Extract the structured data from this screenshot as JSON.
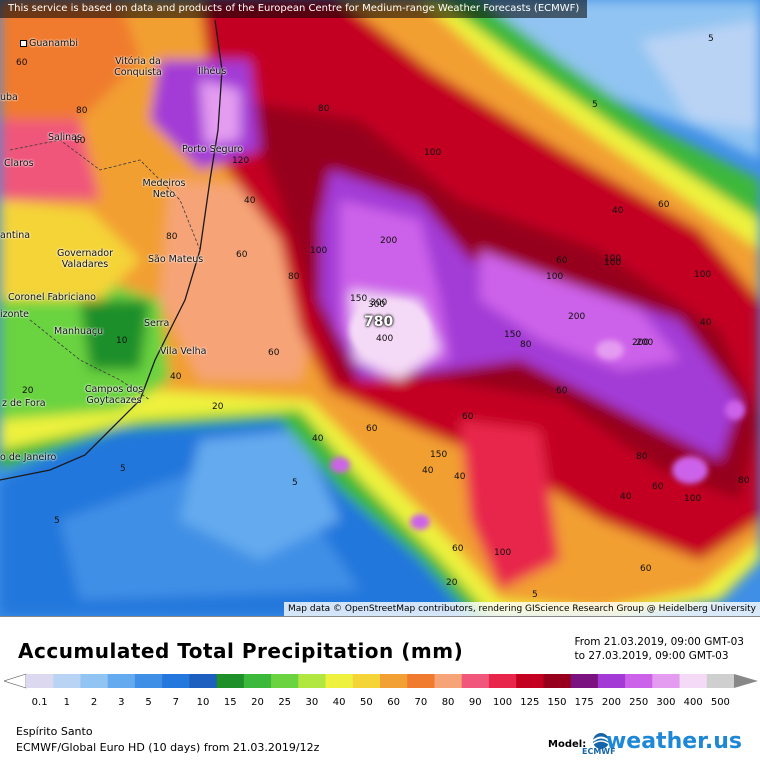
{
  "disclaimer": "This service is based on data and products of the European Centre for Medium-range Weather Forecasts (ECMWF)",
  "attribution": "Map data © OpenStreetMap contributors, rendering GIScience Research Group @ Heidelberg University",
  "title": "Accumulated Total Precipitation (mm)",
  "period": {
    "from": "From 21.03.2019, 09:00 GMT-03",
    "to": "to 27.03.2019, 09:00 GMT-03"
  },
  "scale": {
    "values": [
      "0.1",
      "1",
      "2",
      "3",
      "5",
      "7",
      "10",
      "15",
      "20",
      "25",
      "30",
      "40",
      "50",
      "60",
      "70",
      "80",
      "90",
      "100",
      "125",
      "150",
      "175",
      "200",
      "250",
      "300",
      "400",
      "500"
    ],
    "colors": [
      "#dcd8f0",
      "#b9d3f5",
      "#91c4f2",
      "#64aaee",
      "#3f8fe6",
      "#2477dc",
      "#1d5fbf",
      "#1f8f2a",
      "#3cb83a",
      "#6bd33f",
      "#b2e640",
      "#eef23e",
      "#f5d437",
      "#f29f33",
      "#f07a2e",
      "#f6a477",
      "#f0577a",
      "#e8254b",
      "#c40021",
      "#97001c",
      "#7a127f",
      "#a33ad6",
      "#cd62ea",
      "#e49cf1",
      "#f5daf7",
      "#cfcfcf"
    ]
  },
  "region": "Espírito Santo",
  "model": "ECMWF/Global Euro HD (10 days) from 21.03.2019/12z",
  "model_label": "Model:",
  "ecmwf_label": "ECMWF",
  "brand": "weather.us",
  "peak_label": "780",
  "cities": [
    {
      "name": "Guanambi"
    },
    {
      "name": "Vitória da Conquista"
    },
    {
      "name": "Ilhéus"
    },
    {
      "name": "Salinas"
    },
    {
      "name": "Porto Seguro"
    },
    {
      "name": "Claros"
    },
    {
      "name": "Medeiros Neto"
    },
    {
      "name": "Governador Valadares"
    },
    {
      "name": "São Mateus"
    },
    {
      "name": "Coronel Fabriciano"
    },
    {
      "name": "Manhuaçu"
    },
    {
      "name": "Serra"
    },
    {
      "name": "Vila Velha"
    },
    {
      "name": "Campos dos Goytacazes"
    },
    {
      "name": "z de Fora"
    },
    {
      "name": "o de Janeiro"
    },
    {
      "name": "antina"
    },
    {
      "name": "izonte"
    },
    {
      "name": "uba"
    }
  ],
  "contours": [
    "60",
    "60",
    "80",
    "80",
    "100",
    "40",
    "60",
    "120",
    "80",
    "40",
    "20",
    "5",
    "5",
    "5",
    "5",
    "5",
    "200",
    "300",
    "400",
    "100",
    "150",
    "200",
    "100",
    "60",
    "40",
    "60",
    "80",
    "100",
    "150",
    "200",
    "60",
    "40",
    "60",
    "80",
    "100",
    "80",
    "60",
    "40",
    "60",
    "60",
    "80",
    "40",
    "20",
    "5",
    "10",
    "150",
    "60",
    "40",
    "20",
    "100",
    "40",
    "60",
    "100",
    "200",
    "300",
    "100"
  ]
}
